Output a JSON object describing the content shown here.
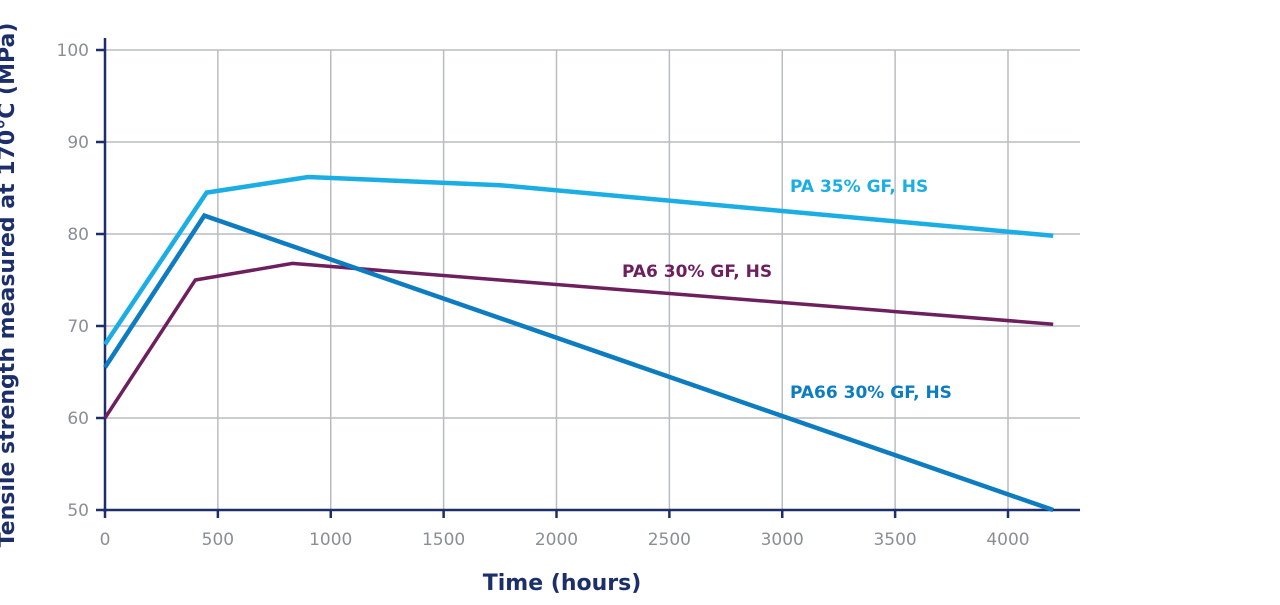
{
  "chart_data": {
    "type": "line",
    "title": "",
    "xlabel": "Time (hours)",
    "ylabel": "Tensile strength measured at 170°C (MPa)",
    "xlim": [
      0,
      4300
    ],
    "ylim": [
      50,
      100
    ],
    "x_ticks": [
      0,
      500,
      1000,
      1500,
      2000,
      2500,
      3000,
      3500,
      4000
    ],
    "y_ticks": [
      50,
      60,
      70,
      80,
      90,
      100
    ],
    "grid": true,
    "series": [
      {
        "name": "PA 35% GF, HS",
        "color": "#1aaee4",
        "points": [
          [
            0,
            68
          ],
          [
            450,
            84.5
          ],
          [
            900,
            86.2
          ],
          [
            1750,
            85.3
          ],
          [
            4200,
            79.8
          ]
        ]
      },
      {
        "name": "PA6 30% GF, HS",
        "color": "#6d1f5e",
        "points": [
          [
            0,
            60
          ],
          [
            400,
            75
          ],
          [
            830,
            76.8
          ],
          [
            4200,
            70.2
          ]
        ]
      },
      {
        "name": "PA66 30% GF, HS",
        "color": "#0d7cc0",
        "points": [
          [
            0,
            65.5
          ],
          [
            440,
            82
          ],
          [
            4200,
            50
          ]
        ]
      }
    ]
  }
}
